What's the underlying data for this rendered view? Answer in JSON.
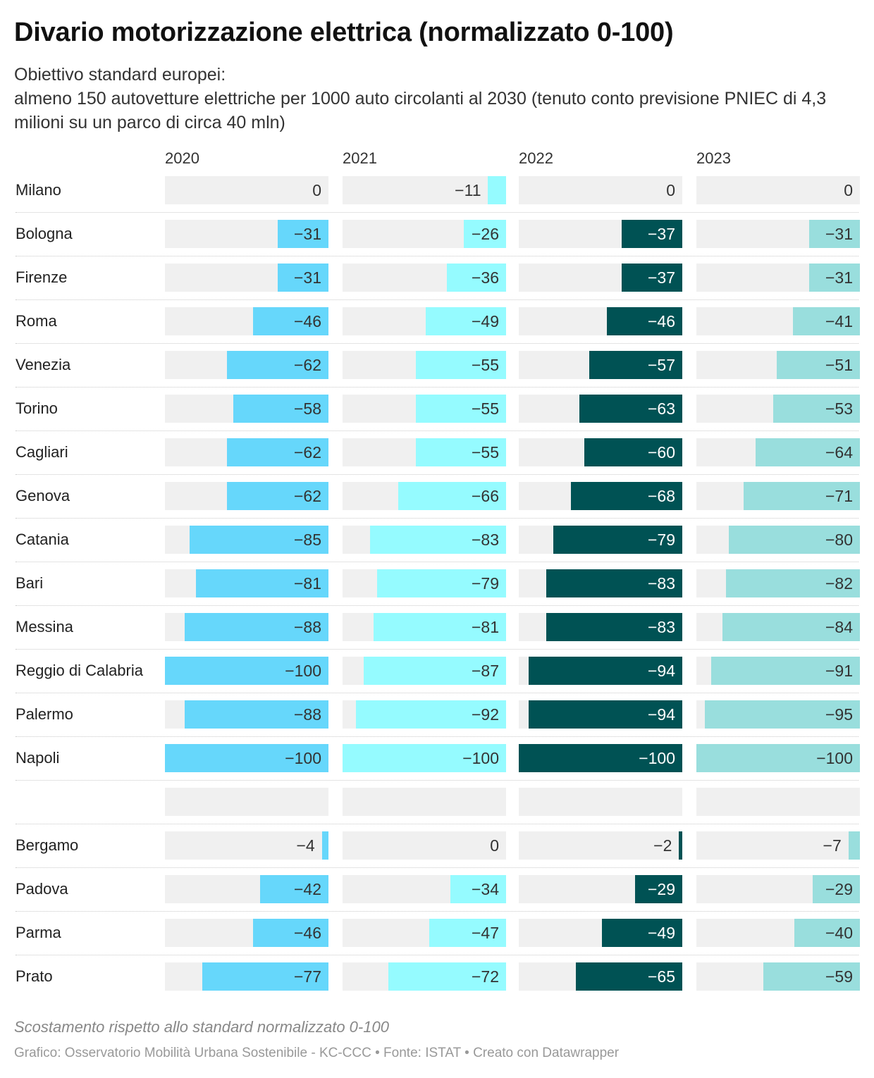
{
  "title": "Divario motorizzazione elettrica (normalizzato 0-100)",
  "subtitle": "Obiettivo standard europei:\nalmeno 150 autovetture elettriche per 1000 auto circolanti al 2030 (tenuto conto previsione PNIEC di 4,3 milioni su un parco di circa 40 mln)",
  "footnote": "Scostamento rispetto allo standard normalizzato 0-100",
  "source": "Grafico: Osservatorio Mobilità Urbana Sostenibile - KC-CCC • Fonte: ISTAT • Creato con Datawrapper",
  "colors": {
    "2020": "#66d7fb",
    "2021": "#95fbff",
    "2022": "#005254",
    "2023": "#99dedd",
    "background": "#f0f0f0"
  },
  "chart_data": {
    "type": "bar",
    "layout": "small-multiples-horizontal-bars",
    "xlim": [
      -100,
      0
    ],
    "grid": false,
    "columns": [
      "2020",
      "2021",
      "2022",
      "2023"
    ],
    "categories": [
      "Milano",
      "Bologna",
      "Firenze",
      "Roma",
      "Venezia",
      "Torino",
      "Cagliari",
      "Genova",
      "Catania",
      "Bari",
      "Messina",
      "Reggio di Calabria",
      "Palermo",
      "Napoli",
      "",
      "Bergamo",
      "Padova",
      "Parma",
      "Prato"
    ],
    "series": [
      {
        "name": "2020",
        "values": [
          0,
          -31,
          -31,
          -46,
          -62,
          -58,
          -62,
          -62,
          -85,
          -81,
          -88,
          -100,
          -88,
          -100,
          null,
          -4,
          -42,
          -46,
          -77
        ]
      },
      {
        "name": "2021",
        "values": [
          -11,
          -26,
          -36,
          -49,
          -55,
          -55,
          -55,
          -66,
          -83,
          -79,
          -81,
          -87,
          -92,
          -100,
          null,
          0,
          -34,
          -47,
          -72
        ]
      },
      {
        "name": "2022",
        "values": [
          0,
          -37,
          -37,
          -46,
          -57,
          -63,
          -60,
          -68,
          -79,
          -83,
          -83,
          -94,
          -94,
          -100,
          null,
          -2,
          -29,
          -49,
          -65
        ]
      },
      {
        "name": "2023",
        "values": [
          0,
          -31,
          -31,
          -41,
          -51,
          -53,
          -64,
          -71,
          -80,
          -82,
          -84,
          -91,
          -95,
          -100,
          null,
          -7,
          -29,
          -40,
          -59
        ]
      }
    ]
  }
}
